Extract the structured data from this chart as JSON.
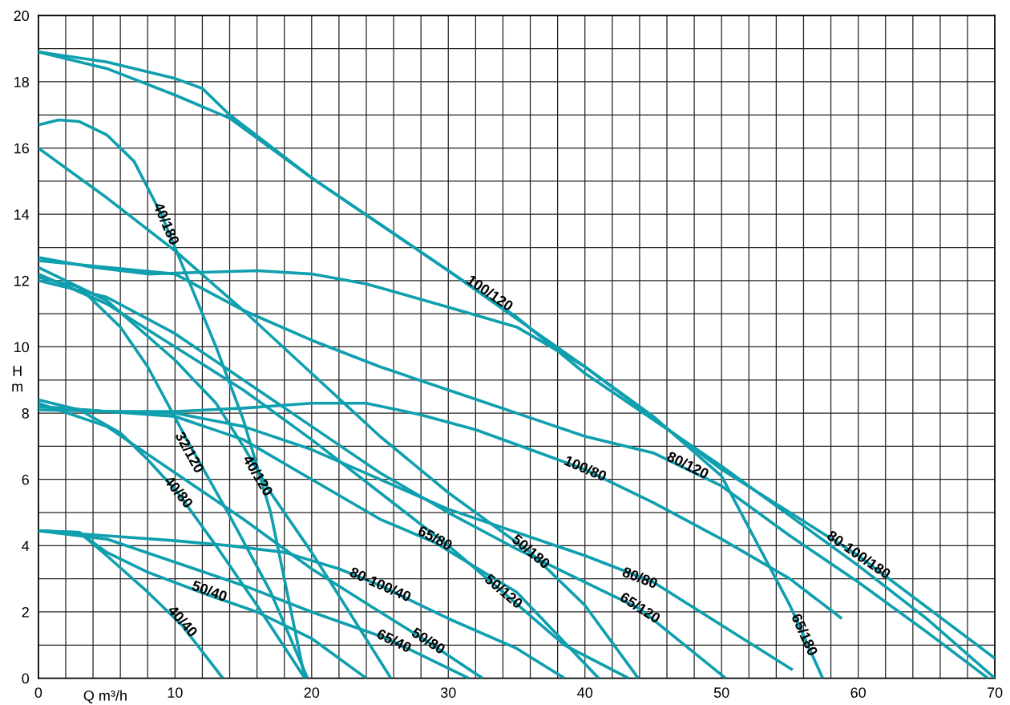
{
  "chart_data": {
    "type": "line",
    "xlabel": "Q m³/h",
    "ylabel": "H\nm",
    "xlim": [
      0,
      70
    ],
    "ylim": [
      0,
      20
    ],
    "xticks": [
      0,
      {
        "value": 2,
        "label": null
      },
      {
        "value": 4,
        "label": null
      },
      {
        "value": 6,
        "label": null
      },
      {
        "value": 8,
        "label": null
      },
      10,
      {
        "value": 12,
        "label": null
      },
      {
        "value": 14,
        "label": null
      },
      {
        "value": 16,
        "label": null
      },
      {
        "value": 18,
        "label": null
      },
      20,
      {
        "value": 22,
        "label": null
      },
      {
        "value": 24,
        "label": null
      },
      {
        "value": 26,
        "label": null
      },
      {
        "value": 28,
        "label": null
      },
      30,
      {
        "value": 32,
        "label": null
      },
      {
        "value": 34,
        "label": null
      },
      {
        "value": 36,
        "label": null
      },
      {
        "value": 38,
        "label": null
      },
      40,
      {
        "value": 42,
        "label": null
      },
      {
        "value": 44,
        "label": null
      },
      {
        "value": 46,
        "label": null
      },
      {
        "value": 48,
        "label": null
      },
      50,
      {
        "value": 52,
        "label": null
      },
      {
        "value": 54,
        "label": null
      },
      {
        "value": 56,
        "label": null
      },
      {
        "value": 58,
        "label": null
      },
      60,
      {
        "value": 62,
        "label": null
      },
      {
        "value": 64,
        "label": null
      },
      {
        "value": 66,
        "label": null
      },
      {
        "value": 68,
        "label": null
      },
      70
    ],
    "yticks": [
      0,
      {
        "value": 1,
        "label": null
      },
      2,
      {
        "value": 3,
        "label": null
      },
      4,
      {
        "value": 5,
        "label": null
      },
      6,
      {
        "value": 7,
        "label": null
      },
      8,
      {
        "value": 9,
        "label": null
      },
      10,
      {
        "value": 11,
        "label": null
      },
      12,
      {
        "value": 13,
        "label": null
      },
      14,
      {
        "value": 15,
        "label": null
      },
      16,
      {
        "value": 17,
        "label": null
      },
      18,
      {
        "value": 19,
        "label": null
      },
      20
    ],
    "grid": true,
    "marker": "none",
    "line_style": "solid",
    "series": [
      {
        "color": "#0f9fae",
        "x": [
          0,
          3,
          5,
          8,
          10.5,
          13.5
        ],
        "values": [
          4.45,
          4.4,
          3.7,
          2.6,
          1.6,
          0
        ]
      },
      {
        "color": "#0f9fae",
        "x": [
          0,
          3,
          5,
          8,
          12.5,
          16,
          20,
          24
        ],
        "values": [
          4.45,
          4.4,
          3.8,
          3.2,
          2.5,
          2.0,
          1.2,
          0
        ]
      },
      {
        "color": "#0f9fae",
        "x": [
          0,
          5,
          10,
          15,
          20,
          25.5,
          31.5
        ],
        "values": [
          4.45,
          4.2,
          3.5,
          2.8,
          2.0,
          1.2,
          0
        ]
      },
      {
        "color": "#0f9fae",
        "x": [
          0,
          5,
          10,
          14,
          18,
          22,
          25,
          30,
          35,
          38.5
        ],
        "values": [
          4.45,
          4.3,
          4.15,
          4.0,
          3.8,
          3.3,
          2.8,
          1.8,
          0.9,
          0
        ]
      },
      {
        "color": "#0f9fae",
        "x": [
          0,
          3,
          6,
          8,
          10.2,
          13,
          16,
          19.5
        ],
        "values": [
          8.4,
          8.1,
          7.4,
          6.6,
          5.6,
          4.0,
          2.2,
          0
        ]
      },
      {
        "color": "#0f9fae",
        "x": [
          0,
          5,
          10,
          15,
          20,
          25,
          28.5,
          32.5
        ],
        "values": [
          8.3,
          7.6,
          6.2,
          4.8,
          3.3,
          2.0,
          1.1,
          0
        ]
      },
      {
        "color": "#0f9fae",
        "x": [
          0,
          5,
          10,
          15,
          20,
          25,
          29,
          35,
          41
        ],
        "values": [
          8.2,
          8.05,
          7.9,
          7.2,
          6.0,
          4.8,
          4.1,
          2.6,
          0
        ]
      },
      {
        "color": "#0f9fae",
        "x": [
          0,
          5,
          10,
          15,
          20,
          25,
          30,
          35,
          40,
          45,
          50,
          55.2
        ],
        "values": [
          8.1,
          8.05,
          8.0,
          7.6,
          6.9,
          6.0,
          5.1,
          4.4,
          3.7,
          2.9,
          1.6,
          0.25
        ]
      },
      {
        "color": "#0f9fae",
        "x": [
          0,
          5,
          10,
          15,
          20,
          24,
          28,
          32,
          36,
          40,
          45,
          50,
          55,
          58.8
        ],
        "values": [
          8.2,
          8.05,
          8.05,
          8.15,
          8.3,
          8.3,
          7.95,
          7.5,
          6.9,
          6.3,
          5.3,
          4.2,
          3.0,
          1.8
        ]
      },
      {
        "color": "#0f9fae",
        "x": [
          0,
          3,
          6,
          8,
          11,
          14,
          17,
          19.7
        ],
        "values": [
          12.1,
          11.8,
          10.6,
          9.4,
          7.1,
          4.9,
          2.6,
          0
        ]
      },
      {
        "color": "#0f9fae",
        "x": [
          0,
          5,
          10,
          13,
          15,
          17,
          20,
          25.8
        ],
        "values": [
          12.4,
          11.4,
          9.6,
          8.3,
          7.0,
          5.6,
          3.8,
          0
        ]
      },
      {
        "color": "#0f9fae",
        "x": [
          0,
          5,
          10,
          15,
          20,
          25,
          30,
          34,
          38.5,
          43.2
        ],
        "values": [
          12.2,
          11.3,
          10.0,
          8.7,
          7.2,
          5.6,
          4.0,
          2.6,
          1.0,
          0
        ]
      },
      {
        "color": "#0f9fae",
        "x": [
          0,
          5,
          10,
          15,
          20,
          25,
          30,
          35,
          40,
          44,
          50.3
        ],
        "values": [
          12.0,
          11.5,
          10.4,
          9.0,
          7.6,
          6.2,
          5.0,
          3.9,
          2.9,
          2.1,
          0
        ]
      },
      {
        "color": "#0f9fae",
        "x": [
          0,
          5,
          10,
          15,
          20,
          25,
          30,
          35,
          40,
          45,
          50,
          55,
          60,
          65,
          69.5
        ],
        "values": [
          12.6,
          12.4,
          12.2,
          11.1,
          10.2,
          9.4,
          8.7,
          8.0,
          7.3,
          6.8,
          5.8,
          4.3,
          2.9,
          1.4,
          0
        ]
      },
      {
        "color": "#0f9fae",
        "x": [
          0,
          4,
          8,
          12,
          16,
          20,
          24,
          30,
          35,
          40,
          45,
          50,
          55,
          57.4
        ],
        "values": [
          12.7,
          12.4,
          12.2,
          12.25,
          12.3,
          12.2,
          11.9,
          11.2,
          10.6,
          9.4,
          7.9,
          6.1,
          2.2,
          0
        ]
      },
      {
        "color": "#0f9fae",
        "x": [
          0,
          1.5,
          3,
          5,
          7,
          9,
          11,
          13,
          15,
          17,
          19.5
        ],
        "values": [
          16.7,
          16.85,
          16.8,
          16.4,
          15.6,
          14.0,
          12.0,
          10.0,
          7.8,
          5.0,
          0
        ]
      },
      {
        "color": "#0f9fae",
        "x": [
          0,
          5,
          10,
          15,
          20,
          25,
          30,
          36,
          40,
          43.9
        ],
        "values": [
          16.0,
          14.5,
          12.9,
          11.1,
          9.2,
          7.3,
          5.6,
          3.8,
          2.2,
          0
        ]
      },
      {
        "color": "#0f9fae",
        "x": [
          0,
          5,
          10,
          12,
          14,
          20,
          30,
          35,
          40,
          45,
          50,
          55,
          60,
          65,
          70
        ],
        "values": [
          18.9,
          18.6,
          18.1,
          17.8,
          17.0,
          15.1,
          12.3,
          10.9,
          9.2,
          7.8,
          6.4,
          4.9,
          3.4,
          1.8,
          0
        ]
      },
      {
        "color": "#0f9fae",
        "x": [
          0,
          5,
          10,
          14,
          20,
          30,
          40,
          50,
          60,
          70
        ],
        "values": [
          18.9,
          18.4,
          17.6,
          16.9,
          15.1,
          12.3,
          9.4,
          6.3,
          3.7,
          0.6
        ]
      }
    ],
    "annotations": [
      {
        "text": "40/180",
        "x": 9.3,
        "y": 13.7
      },
      {
        "text": "100/120",
        "x": 33,
        "y": 11.6
      },
      {
        "text": "32/120",
        "x": 11,
        "y": 6.8
      },
      {
        "text": "40/120",
        "x": 16,
        "y": 6.1
      },
      {
        "text": "40/80",
        "x": 10.2,
        "y": 5.6
      },
      {
        "text": "100/80",
        "x": 40,
        "y": 6.3
      },
      {
        "text": "80/120",
        "x": 47.5,
        "y": 6.4
      },
      {
        "text": "80-100/180",
        "x": 60,
        "y": 3.7
      },
      {
        "text": "65/80",
        "x": 29,
        "y": 4.2
      },
      {
        "text": "50/180",
        "x": 36,
        "y": 3.8
      },
      {
        "text": "80-100/40",
        "x": 25,
        "y": 2.8
      },
      {
        "text": "50/40",
        "x": 12.5,
        "y": 2.6
      },
      {
        "text": "40/40",
        "x": 10.5,
        "y": 1.7
      },
      {
        "text": "50/120",
        "x": 34,
        "y": 2.6
      },
      {
        "text": "80/80",
        "x": 44,
        "y": 3.0
      },
      {
        "text": "65/120",
        "x": 44,
        "y": 2.1
      },
      {
        "text": "65/40",
        "x": 26,
        "y": 1.1
      },
      {
        "text": "50/80",
        "x": 28.5,
        "y": 1.1
      },
      {
        "text": "65/180",
        "x": 56,
        "y": 1.3
      }
    ]
  }
}
